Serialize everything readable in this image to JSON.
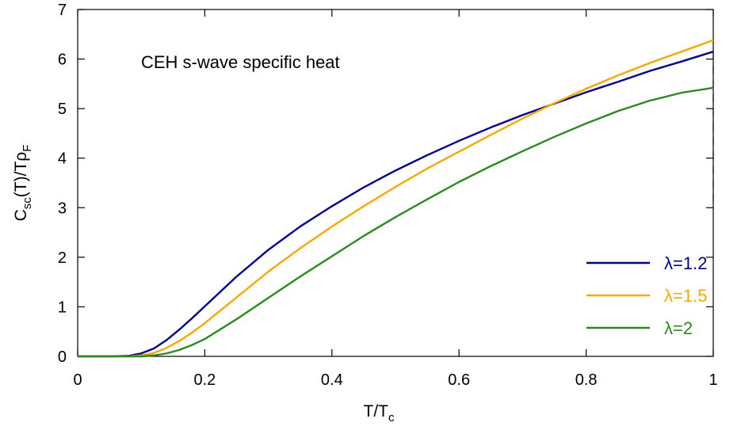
{
  "chart_data": {
    "type": "line",
    "title": "",
    "annotation": "CEH s-wave specific heat",
    "xlabel_main": "T/T",
    "xlabel_sub": "c",
    "ylabel_parts": [
      "C",
      "sc",
      "(T)/Tρ",
      "F"
    ],
    "xlim": [
      0,
      1.0
    ],
    "ylim": [
      0,
      7
    ],
    "xticks": [
      0,
      0.2,
      0.4,
      0.6,
      0.8,
      1.0
    ],
    "xtick_labels": [
      "0",
      "0.2",
      "0.4",
      "0.6",
      "0.8",
      "1"
    ],
    "yticks": [
      0,
      1,
      2,
      3,
      4,
      5,
      6,
      7
    ],
    "ytick_labels": [
      "0",
      "1",
      "2",
      "3",
      "4",
      "5",
      "6",
      "7"
    ],
    "grid": false,
    "legend_position": "bottom-right",
    "vertical_dashed_line_x": 1.0,
    "series": [
      {
        "name": "λ=1.2",
        "color": "#00008b",
        "x": [
          0,
          0.05,
          0.08,
          0.1,
          0.12,
          0.14,
          0.16,
          0.18,
          0.2,
          0.25,
          0.3,
          0.35,
          0.4,
          0.45,
          0.5,
          0.55,
          0.6,
          0.65,
          0.7,
          0.75,
          0.8,
          0.85,
          0.9,
          0.95,
          1.0
        ],
        "y": [
          0,
          0.0,
          0.01,
          0.06,
          0.16,
          0.33,
          0.54,
          0.77,
          1.01,
          1.61,
          2.15,
          2.62,
          3.03,
          3.41,
          3.75,
          4.06,
          4.35,
          4.62,
          4.87,
          5.1,
          5.33,
          5.54,
          5.76,
          5.95,
          6.15
        ]
      },
      {
        "name": "λ=1.5",
        "color": "#f5a800",
        "x": [
          0,
          0.05,
          0.08,
          0.1,
          0.12,
          0.14,
          0.16,
          0.18,
          0.2,
          0.25,
          0.3,
          0.35,
          0.4,
          0.45,
          0.5,
          0.55,
          0.6,
          0.65,
          0.7,
          0.75,
          0.8,
          0.85,
          0.9,
          0.95,
          1.0
        ],
        "y": [
          0,
          0.0,
          0.0,
          0.02,
          0.07,
          0.17,
          0.31,
          0.48,
          0.67,
          1.19,
          1.71,
          2.18,
          2.62,
          3.03,
          3.42,
          3.79,
          4.13,
          4.47,
          4.8,
          5.11,
          5.4,
          5.67,
          5.92,
          6.15,
          6.38
        ]
      },
      {
        "name": "λ=2",
        "color": "#2b8a1f",
        "x": [
          0,
          0.05,
          0.08,
          0.1,
          0.12,
          0.14,
          0.16,
          0.18,
          0.2,
          0.25,
          0.3,
          0.35,
          0.4,
          0.45,
          0.5,
          0.55,
          0.6,
          0.65,
          0.7,
          0.75,
          0.8,
          0.85,
          0.9,
          0.95,
          1.0
        ],
        "y": [
          0,
          0.0,
          0.0,
          0.0,
          0.02,
          0.06,
          0.13,
          0.23,
          0.35,
          0.75,
          1.18,
          1.61,
          2.02,
          2.43,
          2.81,
          3.17,
          3.52,
          3.84,
          4.14,
          4.43,
          4.7,
          4.95,
          5.16,
          5.32,
          5.42
        ]
      }
    ]
  }
}
